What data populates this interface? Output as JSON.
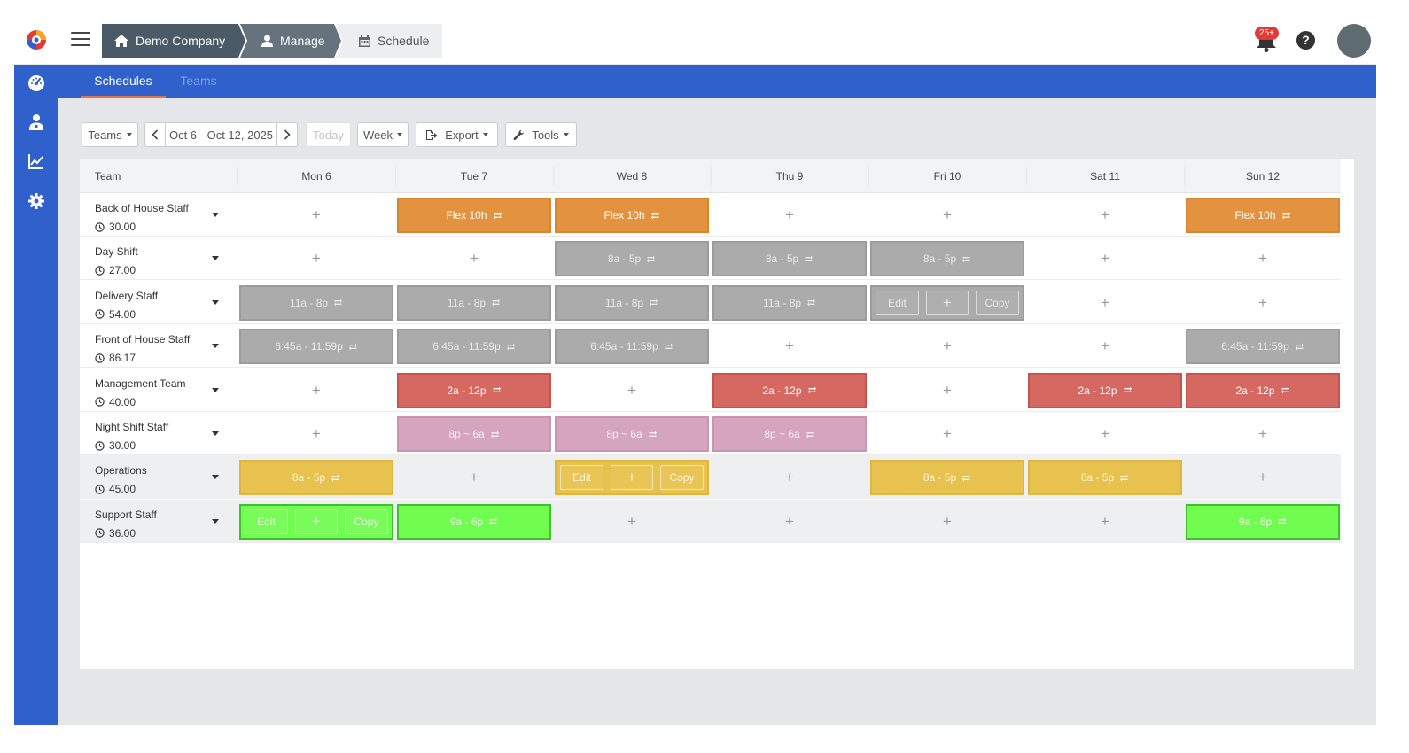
{
  "breadcrumb": [
    {
      "label": "Demo Company",
      "icon": "home-icon"
    },
    {
      "label": "Manage",
      "icon": "user-icon"
    },
    {
      "label": "Schedule",
      "icon": "calendar-icon"
    }
  ],
  "header": {
    "notification_count": "25+",
    "help_label": "?"
  },
  "sidebar": {
    "items": [
      "dashboard-icon",
      "users-icon",
      "chart-icon",
      "gear-icon"
    ]
  },
  "tabs": [
    {
      "label": "Schedules",
      "active": true
    },
    {
      "label": "Teams",
      "active": false
    }
  ],
  "toolbar": {
    "teams_label": "Teams",
    "date_range": "Oct 6 - Oct 12, 2025",
    "today_label": "Today",
    "view_label": "Week",
    "export_label": "Export",
    "tools_label": "Tools"
  },
  "grid": {
    "team_header": "Team",
    "days": [
      "Mon 6",
      "Tue 7",
      "Wed 8",
      "Thu 9",
      "Fri 10",
      "Sat 11",
      "Sun 12"
    ],
    "add_symbol": "+",
    "edit_label": "Edit",
    "copy_label": "Copy",
    "rows": [
      {
        "team": "Back of House Staff",
        "hours": "30.00",
        "shaded": false,
        "cells": [
          null,
          {
            "label": "Flex 10h",
            "color": "orange"
          },
          {
            "label": "Flex 10h",
            "color": "orange"
          },
          null,
          null,
          null,
          {
            "label": "Flex 10h",
            "color": "orange"
          }
        ]
      },
      {
        "team": "Day Shift",
        "hours": "27.00",
        "shaded": false,
        "cells": [
          null,
          null,
          {
            "label": "8a - 5p",
            "color": "gray"
          },
          {
            "label": "8a - 5p",
            "color": "gray"
          },
          {
            "label": "8a - 5p",
            "color": "gray"
          },
          null,
          null
        ]
      },
      {
        "team": "Delivery Staff",
        "hours": "54.00",
        "shaded": false,
        "cells": [
          {
            "label": "11a - 8p",
            "color": "gray"
          },
          {
            "label": "11a - 8p",
            "color": "gray"
          },
          {
            "label": "11a - 8p",
            "color": "gray"
          },
          {
            "label": "11a - 8p",
            "color": "gray"
          },
          {
            "edit": true,
            "color": "gray"
          },
          null,
          null
        ]
      },
      {
        "team": "Front of House Staff",
        "hours": "86.17",
        "shaded": false,
        "cells": [
          {
            "label": "6:45a - 11:59p",
            "color": "gray"
          },
          {
            "label": "6:45a - 11:59p",
            "color": "gray"
          },
          {
            "label": "6:45a - 11:59p",
            "color": "gray"
          },
          null,
          null,
          null,
          {
            "label": "6:45a - 11:59p",
            "color": "gray"
          }
        ]
      },
      {
        "team": "Management Team",
        "hours": "40.00",
        "shaded": false,
        "cells": [
          null,
          {
            "label": "2a - 12p",
            "color": "red"
          },
          null,
          {
            "label": "2a - 12p",
            "color": "red"
          },
          null,
          {
            "label": "2a - 12p",
            "color": "red"
          },
          {
            "label": "2a - 12p",
            "color": "red"
          }
        ]
      },
      {
        "team": "Night Shift Staff",
        "hours": "30.00",
        "shaded": false,
        "cells": [
          null,
          {
            "label": "8p ~ 6a",
            "color": "pink"
          },
          {
            "label": "8p ~ 6a",
            "color": "pink"
          },
          {
            "label": "8p ~ 6a",
            "color": "pink"
          },
          null,
          null,
          null
        ]
      },
      {
        "team": "Operations",
        "hours": "45.00",
        "shaded": true,
        "cells": [
          {
            "label": "8a - 5p",
            "color": "yellow"
          },
          null,
          {
            "edit": true,
            "color": "yellow"
          },
          null,
          {
            "label": "8a - 5p",
            "color": "yellow"
          },
          {
            "label": "8a - 5p",
            "color": "yellow"
          },
          null
        ]
      },
      {
        "team": "Support Staff",
        "hours": "36.00",
        "shaded": true,
        "cells": [
          {
            "edit": true,
            "color": "green"
          },
          {
            "label": "9a - 6p",
            "color": "green"
          },
          null,
          null,
          null,
          null,
          {
            "label": "9a - 6p",
            "color": "green"
          }
        ]
      }
    ]
  }
}
